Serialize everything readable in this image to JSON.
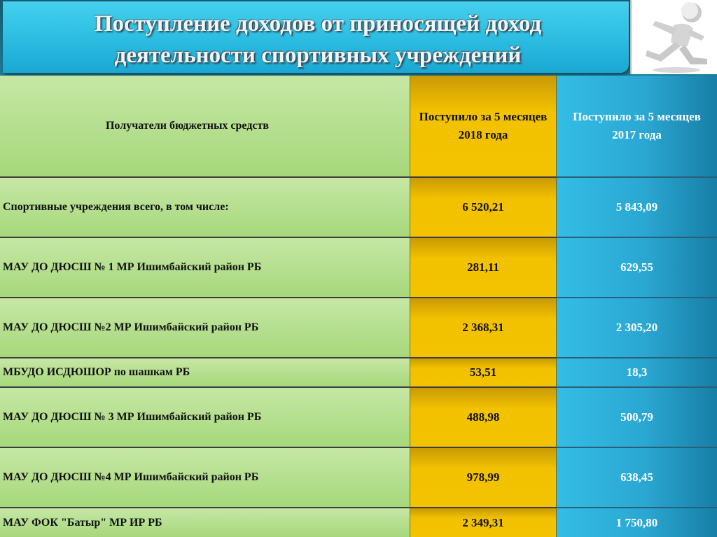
{
  "title": {
    "line1": "Поступление доходов от приносящей доход",
    "line2": "деятельности спортивных учреждений"
  },
  "logo": {
    "icon": "running-person-icon"
  },
  "table": {
    "headers": {
      "recipients": "Получатели бюджетных средств",
      "y2018": "Поступило за 5 месяцев 2018 года",
      "y2017": "Поступило за 5 месяцев 2017 года"
    },
    "rows": [
      {
        "name": "Спортивные учреждения всего, в том числе:",
        "y2018": "6 520,21",
        "y2017": "5 843,09"
      },
      {
        "name": "МАУ ДО ДЮСШ № 1 МР Ишимбайский район РБ",
        "y2018": "281,11",
        "y2017": "629,55"
      },
      {
        "name": "МАУ ДО ДЮСШ №2 МР Ишимбайский район РБ",
        "y2018": "2 368,31",
        "y2017": "2 305,20"
      },
      {
        "name": "МБУДО ИСДЮШОР по шашкам РБ",
        "y2018": "53,51",
        "y2017": "18,3"
      },
      {
        "name": "МАУ ДО ДЮСШ № 3 МР Ишимбайский район РБ",
        "y2018": "488,98",
        "y2017": "500,79"
      },
      {
        "name": "МАУ ДО ДЮСШ №4 МР Ишимбайский район РБ",
        "y2018": "978,99",
        "y2017": "638,45"
      },
      {
        "name": "МАУ ФОК \"Батыр\" МР ИР РБ",
        "y2018": "2 349,31",
        "y2017": "1 750,80"
      }
    ]
  }
}
